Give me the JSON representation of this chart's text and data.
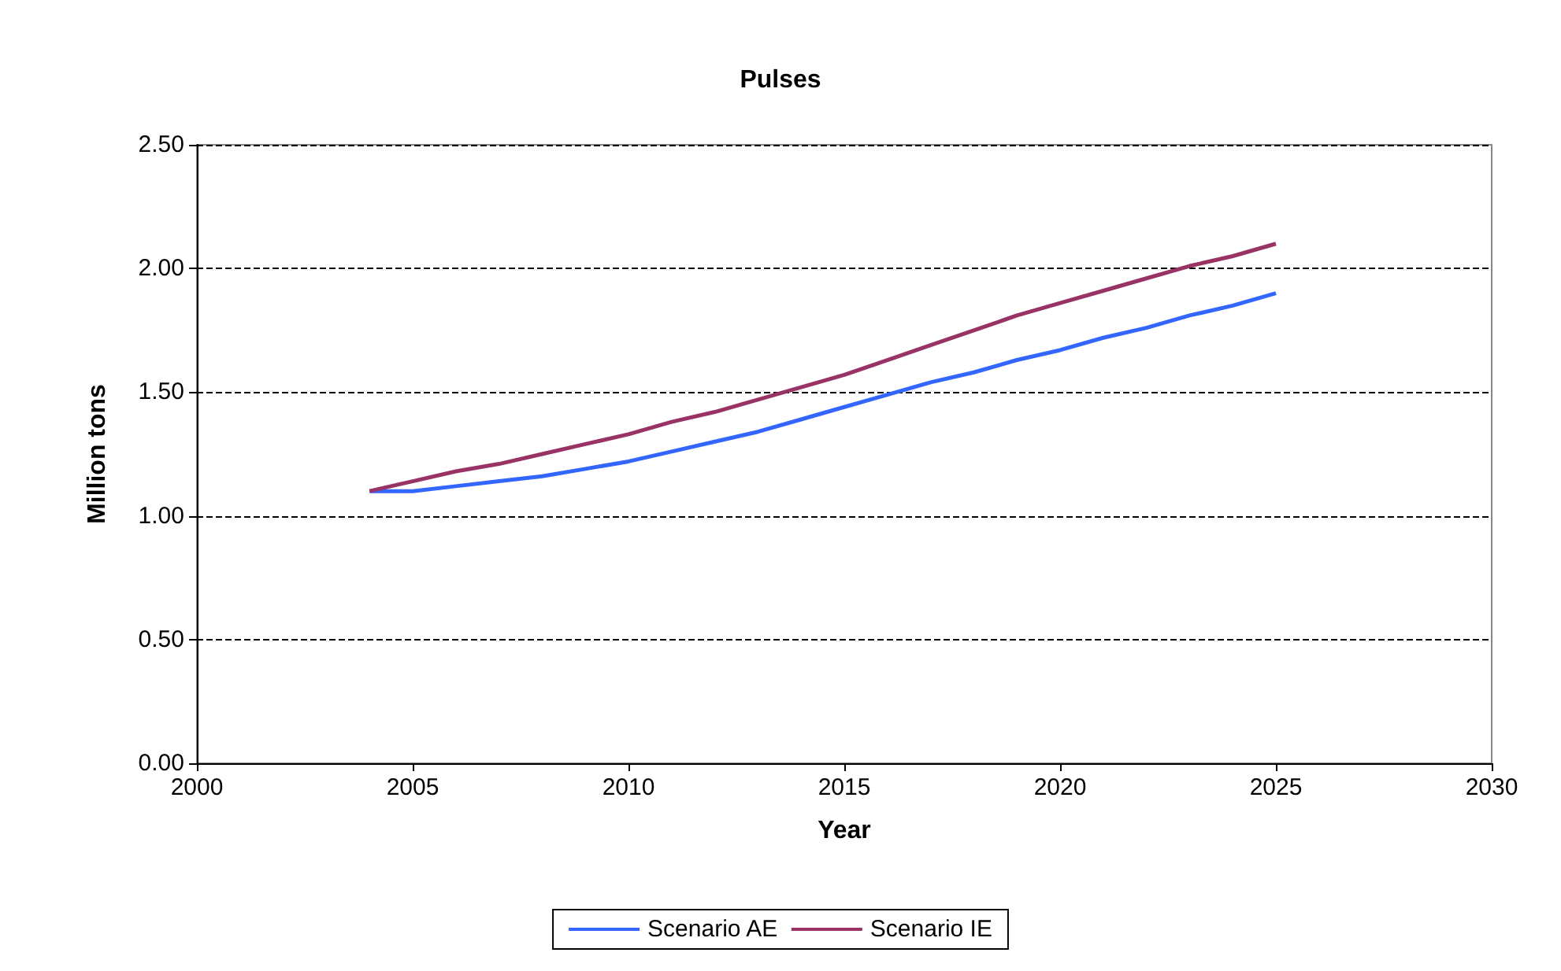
{
  "chart_data": {
    "type": "line",
    "title": "Pulses",
    "xlabel": "Year",
    "ylabel": "Million tons",
    "x": [
      2004,
      2005,
      2006,
      2007,
      2008,
      2009,
      2010,
      2011,
      2012,
      2013,
      2014,
      2015,
      2016,
      2017,
      2018,
      2019,
      2020,
      2021,
      2022,
      2023,
      2024,
      2025
    ],
    "series": [
      {
        "name": "Scenario AE",
        "color": "#3366ff",
        "values": [
          1.1,
          1.1,
          1.12,
          1.14,
          1.16,
          1.19,
          1.22,
          1.26,
          1.3,
          1.34,
          1.39,
          1.44,
          1.49,
          1.54,
          1.58,
          1.63,
          1.67,
          1.72,
          1.76,
          1.81,
          1.85,
          1.9
        ]
      },
      {
        "name": "Scenario IE",
        "color": "#993366",
        "values": [
          1.1,
          1.14,
          1.18,
          1.21,
          1.25,
          1.29,
          1.33,
          1.38,
          1.42,
          1.47,
          1.52,
          1.57,
          1.63,
          1.69,
          1.75,
          1.81,
          1.86,
          1.91,
          1.96,
          2.01,
          2.05,
          2.1
        ]
      }
    ],
    "xlim": [
      2000,
      2030
    ],
    "xticks": [
      2000,
      2005,
      2010,
      2015,
      2020,
      2025,
      2030
    ],
    "ylim": [
      0,
      2.5
    ],
    "yticks": [
      {
        "value": 0,
        "label": "0.00"
      },
      {
        "value": 0.5,
        "label": "0.50"
      },
      {
        "value": 1,
        "label": "1.00"
      },
      {
        "value": 1.5,
        "label": "1.50"
      },
      {
        "value": 2,
        "label": "2.00"
      },
      {
        "value": 2.5,
        "label": "2.50"
      }
    ],
    "grid": "y",
    "line_style": "solid",
    "legend": "bottom"
  }
}
